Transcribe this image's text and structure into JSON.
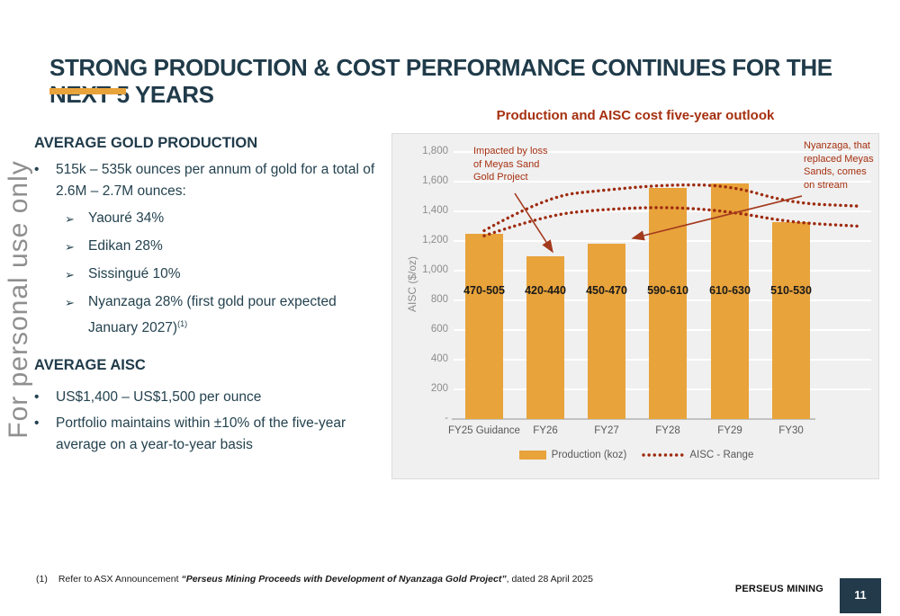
{
  "slide": {
    "title": "STRONG PRODUCTION & COST PERFORMANCE CONTINUES FOR THE NEXT 5 YEARS",
    "watermark": "For personal use only",
    "brand": "PERSEUS MINING",
    "page_number": "11",
    "footnote": {
      "marker": "(1)",
      "text_pre": "Refer to ASX Announcement ",
      "text_quote": "“Perseus Mining Proceeds with Development of Nyanzaga Gold Project”",
      "text_post": ", dated 28 April 2025"
    }
  },
  "production_section": {
    "heading": "AVERAGE GOLD PRODUCTION",
    "bullet_marker": "•",
    "bullet": "515k – 535k ounces per annum of gold for a total of 2.6M – 2.7M ounces:",
    "sub_bullet_marker": "➢",
    "sub_bullets": [
      "Yaouré  34%",
      "Edikan 28%",
      "Sissingué 10%",
      "Nyanzaga 28%  (first gold pour expected January 2027)"
    ],
    "footnote_ref": "(1)"
  },
  "aisc_section": {
    "heading": "AVERAGE AISC",
    "bullet_marker": "•",
    "bullets": [
      "US$1,400 – US$1,500 per ounce",
      "Portfolio maintains within ±10% of the five-year average on a year-to-year basis"
    ]
  },
  "chart_data": {
    "type": "bar",
    "title": "Production and AISC cost five-year outlook",
    "categories": [
      "FY25 Guidance",
      "FY26",
      "FY27",
      "FY28",
      "FY29",
      "FY30"
    ],
    "ylabel": "AISC ($/oz)",
    "ylim": [
      0,
      1800
    ],
    "y_ticks": [
      "1,800",
      "1,600",
      "1,400",
      "1,200",
      "1,000",
      "800",
      "600",
      "400",
      "200",
      "-"
    ],
    "grid": true,
    "legend_position": "bottom",
    "legend": [
      "Production (koz)",
      "AISC - Range"
    ],
    "series": [
      {
        "name": "Production (koz)",
        "type": "bar",
        "value_labels": [
          "470-505",
          "420-440",
          "450-470",
          "590-610",
          "610-630",
          "510-530"
        ],
        "bar_top_on_aisc_axis": [
          1250,
          1100,
          1180,
          1555,
          1590,
          1330
        ]
      },
      {
        "name": "AISC - Range",
        "type": "dotted-line",
        "upper": [
          1270,
          1500,
          1545,
          1580,
          1575,
          1455
        ],
        "upper_tail": 1435,
        "lower": [
          1235,
          1375,
          1415,
          1430,
          1400,
          1325
        ],
        "lower_tail": 1300
      }
    ],
    "annotations": [
      "Impacted by loss of Meyas Sand Gold Project",
      "Nyanzaga, that replaced Meyas Sands, comes on stream"
    ],
    "colors": {
      "bar": "#E8A33B",
      "aisc_line": "#9E2B10",
      "annotation": "#A6300F",
      "title": "#A6300F"
    }
  },
  "theme": {
    "heading_navy": "#203B4A",
    "body_navy": "#24424F",
    "gold": "#E8A33B",
    "chart_red": "#A6300F",
    "page_box_navy": "#223A49",
    "watermark_gray": "#8F8F8F"
  }
}
